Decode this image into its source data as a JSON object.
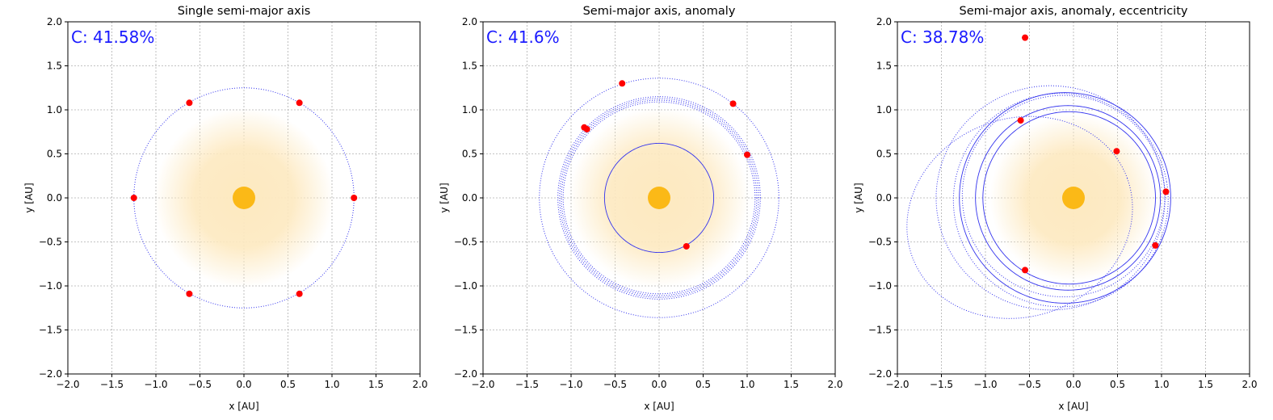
{
  "colors": {
    "orbit": "#3333ee",
    "planet": "#ff0000",
    "star": "#fbb917",
    "halo": "#fde9c0",
    "coverage_text": "#1a1aff",
    "grid": "#b0b0b0"
  },
  "chart_data": [
    {
      "type": "scatter",
      "title": "Single semi-major axis",
      "xlabel": "x [AU]",
      "ylabel": "y [AU]",
      "xlim": [
        -2.0,
        2.0
      ],
      "ylim": [
        -2.0,
        2.0
      ],
      "ticks": [
        "−2.0",
        "−1.5",
        "−1.0",
        "−0.5",
        "0.0",
        "0.5",
        "1.0",
        "1.5",
        "2.0"
      ],
      "grid": true,
      "coverage": "C: 41.58%",
      "star": {
        "x": 0,
        "y": 0
      },
      "halo_radius": 1.02,
      "orbits": [
        {
          "a": 1.25,
          "e": 0,
          "omega": 0,
          "style": "dotted"
        }
      ],
      "points": [
        {
          "x": -0.62,
          "y": 1.08
        },
        {
          "x": 0.63,
          "y": 1.08
        },
        {
          "x": -1.25,
          "y": 0.0
        },
        {
          "x": 1.25,
          "y": 0.0
        },
        {
          "x": -0.62,
          "y": -1.09
        },
        {
          "x": 0.63,
          "y": -1.09
        }
      ]
    },
    {
      "type": "scatter",
      "title": "Semi-major axis, anomaly",
      "xlabel": "x [AU]",
      "ylabel": "y [AU]",
      "xlim": [
        -2.0,
        2.0
      ],
      "ylim": [
        -2.0,
        2.0
      ],
      "ticks": [
        "−2.0",
        "−1.5",
        "−1.0",
        "−0.5",
        "0.0",
        "0.5",
        "1.0",
        "1.5",
        "2.0"
      ],
      "grid": true,
      "coverage": "C: 41.6%",
      "star": {
        "x": 0,
        "y": 0
      },
      "halo_radius": 1.02,
      "orbits": [
        {
          "a": 1.36,
          "e": 0,
          "omega": 0,
          "style": "dotted"
        },
        {
          "a": 1.15,
          "e": 0,
          "omega": 0,
          "style": "dotted"
        },
        {
          "a": 1.13,
          "e": 0,
          "omega": 0,
          "style": "dotted"
        },
        {
          "a": 1.11,
          "e": 0,
          "omega": 0,
          "style": "dotted"
        },
        {
          "a": 1.09,
          "e": 0,
          "omega": 0,
          "style": "dotted"
        },
        {
          "a": 0.62,
          "e": 0,
          "omega": 0,
          "style": "solid"
        }
      ],
      "points": [
        {
          "x": -0.42,
          "y": 1.3
        },
        {
          "x": 0.84,
          "y": 1.07
        },
        {
          "x": -0.85,
          "y": 0.8
        },
        {
          "x": -0.82,
          "y": 0.78
        },
        {
          "x": 1.0,
          "y": 0.49
        },
        {
          "x": 0.31,
          "y": -0.55
        }
      ]
    },
    {
      "type": "scatter",
      "title": "Semi-major axis, anomaly, eccentricity",
      "xlabel": "x [AU]",
      "ylabel": "y [AU]",
      "xlim": [
        -2.0,
        2.0
      ],
      "ylim": [
        -2.0,
        2.0
      ],
      "ticks": [
        "−2.0",
        "−1.5",
        "−1.0",
        "−0.5",
        "0.0",
        "0.5",
        "1.0",
        "1.5",
        "2.0"
      ],
      "grid": true,
      "coverage": "C: 38.78%",
      "star": {
        "x": 0,
        "y": 0
      },
      "halo_radius": 0.95,
      "orbits": [
        {
          "a": 1.3,
          "e": 0.5,
          "omega": 20,
          "style": "dotted"
        },
        {
          "a": 1.3,
          "e": 0.2,
          "omega": 0,
          "style": "dotted"
        },
        {
          "a": 1.22,
          "e": 0.12,
          "omega": 10,
          "style": "dotted"
        },
        {
          "a": 1.15,
          "e": 0.1,
          "omega": -10,
          "style": "dotted"
        },
        {
          "a": 1.05,
          "e": 0.06,
          "omega": 0,
          "style": "solid"
        },
        {
          "a": 0.98,
          "e": 0.05,
          "omega": 0,
          "style": "solid"
        },
        {
          "a": 1.2,
          "e": 0.08,
          "omega": 0,
          "style": "solid"
        }
      ],
      "points": [
        {
          "x": -0.55,
          "y": 1.82
        },
        {
          "x": -0.6,
          "y": 0.88
        },
        {
          "x": 0.49,
          "y": 0.53
        },
        {
          "x": 1.05,
          "y": 0.07
        },
        {
          "x": 0.93,
          "y": -0.54
        },
        {
          "x": -0.55,
          "y": -0.82
        }
      ]
    }
  ]
}
